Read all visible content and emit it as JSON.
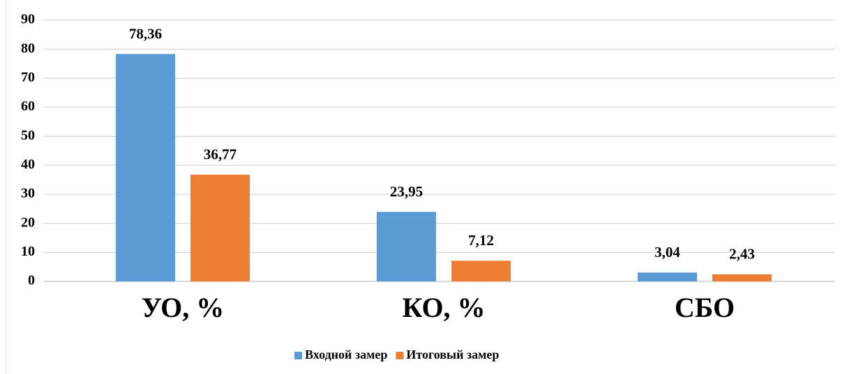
{
  "chart_data": {
    "type": "bar",
    "categories": [
      "УО, %",
      "КО, %",
      "СБО"
    ],
    "series": [
      {
        "name": "Входной замер",
        "color": "#5b9bd5",
        "values": [
          78.36,
          23.95,
          3.04
        ],
        "value_labels": [
          "78,36",
          "23,95",
          "3,04"
        ]
      },
      {
        "name": "Итоговый замер",
        "color": "#ed7d31",
        "values": [
          36.77,
          7.12,
          2.43
        ],
        "value_labels": [
          "36,77",
          "7,12",
          "2,43"
        ]
      }
    ],
    "ylim": [
      0,
      90
    ],
    "yticks": [
      0,
      10,
      20,
      30,
      40,
      50,
      60,
      70,
      80,
      90
    ],
    "grid": true,
    "legend": "bottom"
  }
}
